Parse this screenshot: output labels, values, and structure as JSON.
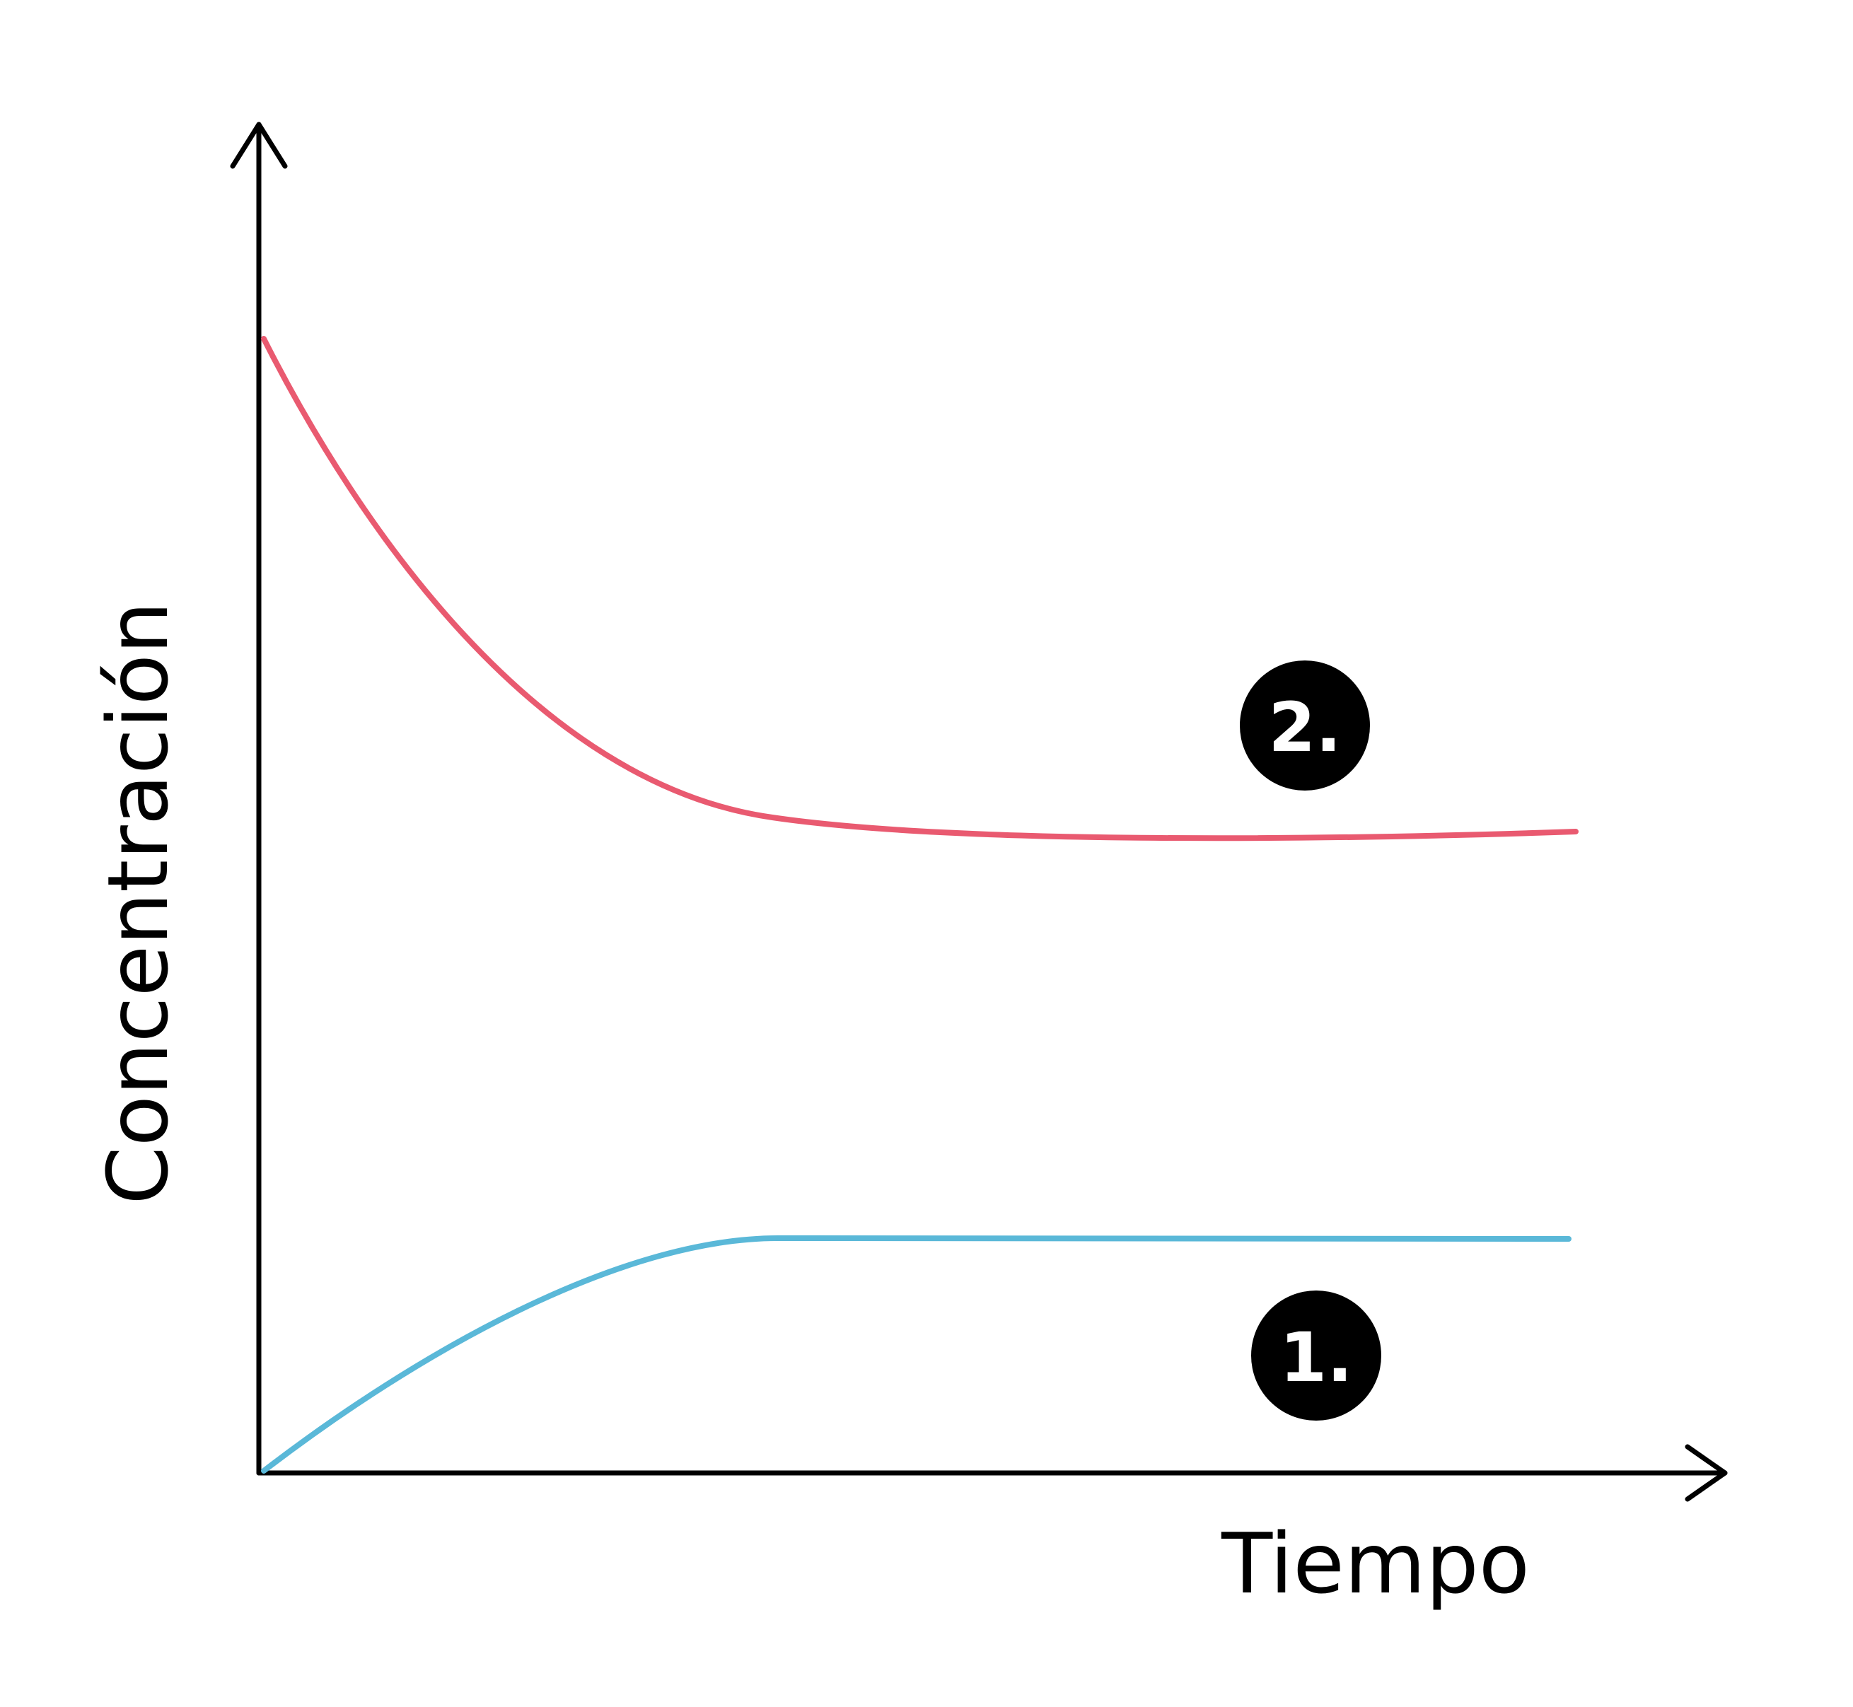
{
  "axes": {
    "y_label": "Concentración",
    "x_label": "Tiempo"
  },
  "markers": [
    {
      "label": "2."
    },
    {
      "label": "1."
    }
  ]
}
